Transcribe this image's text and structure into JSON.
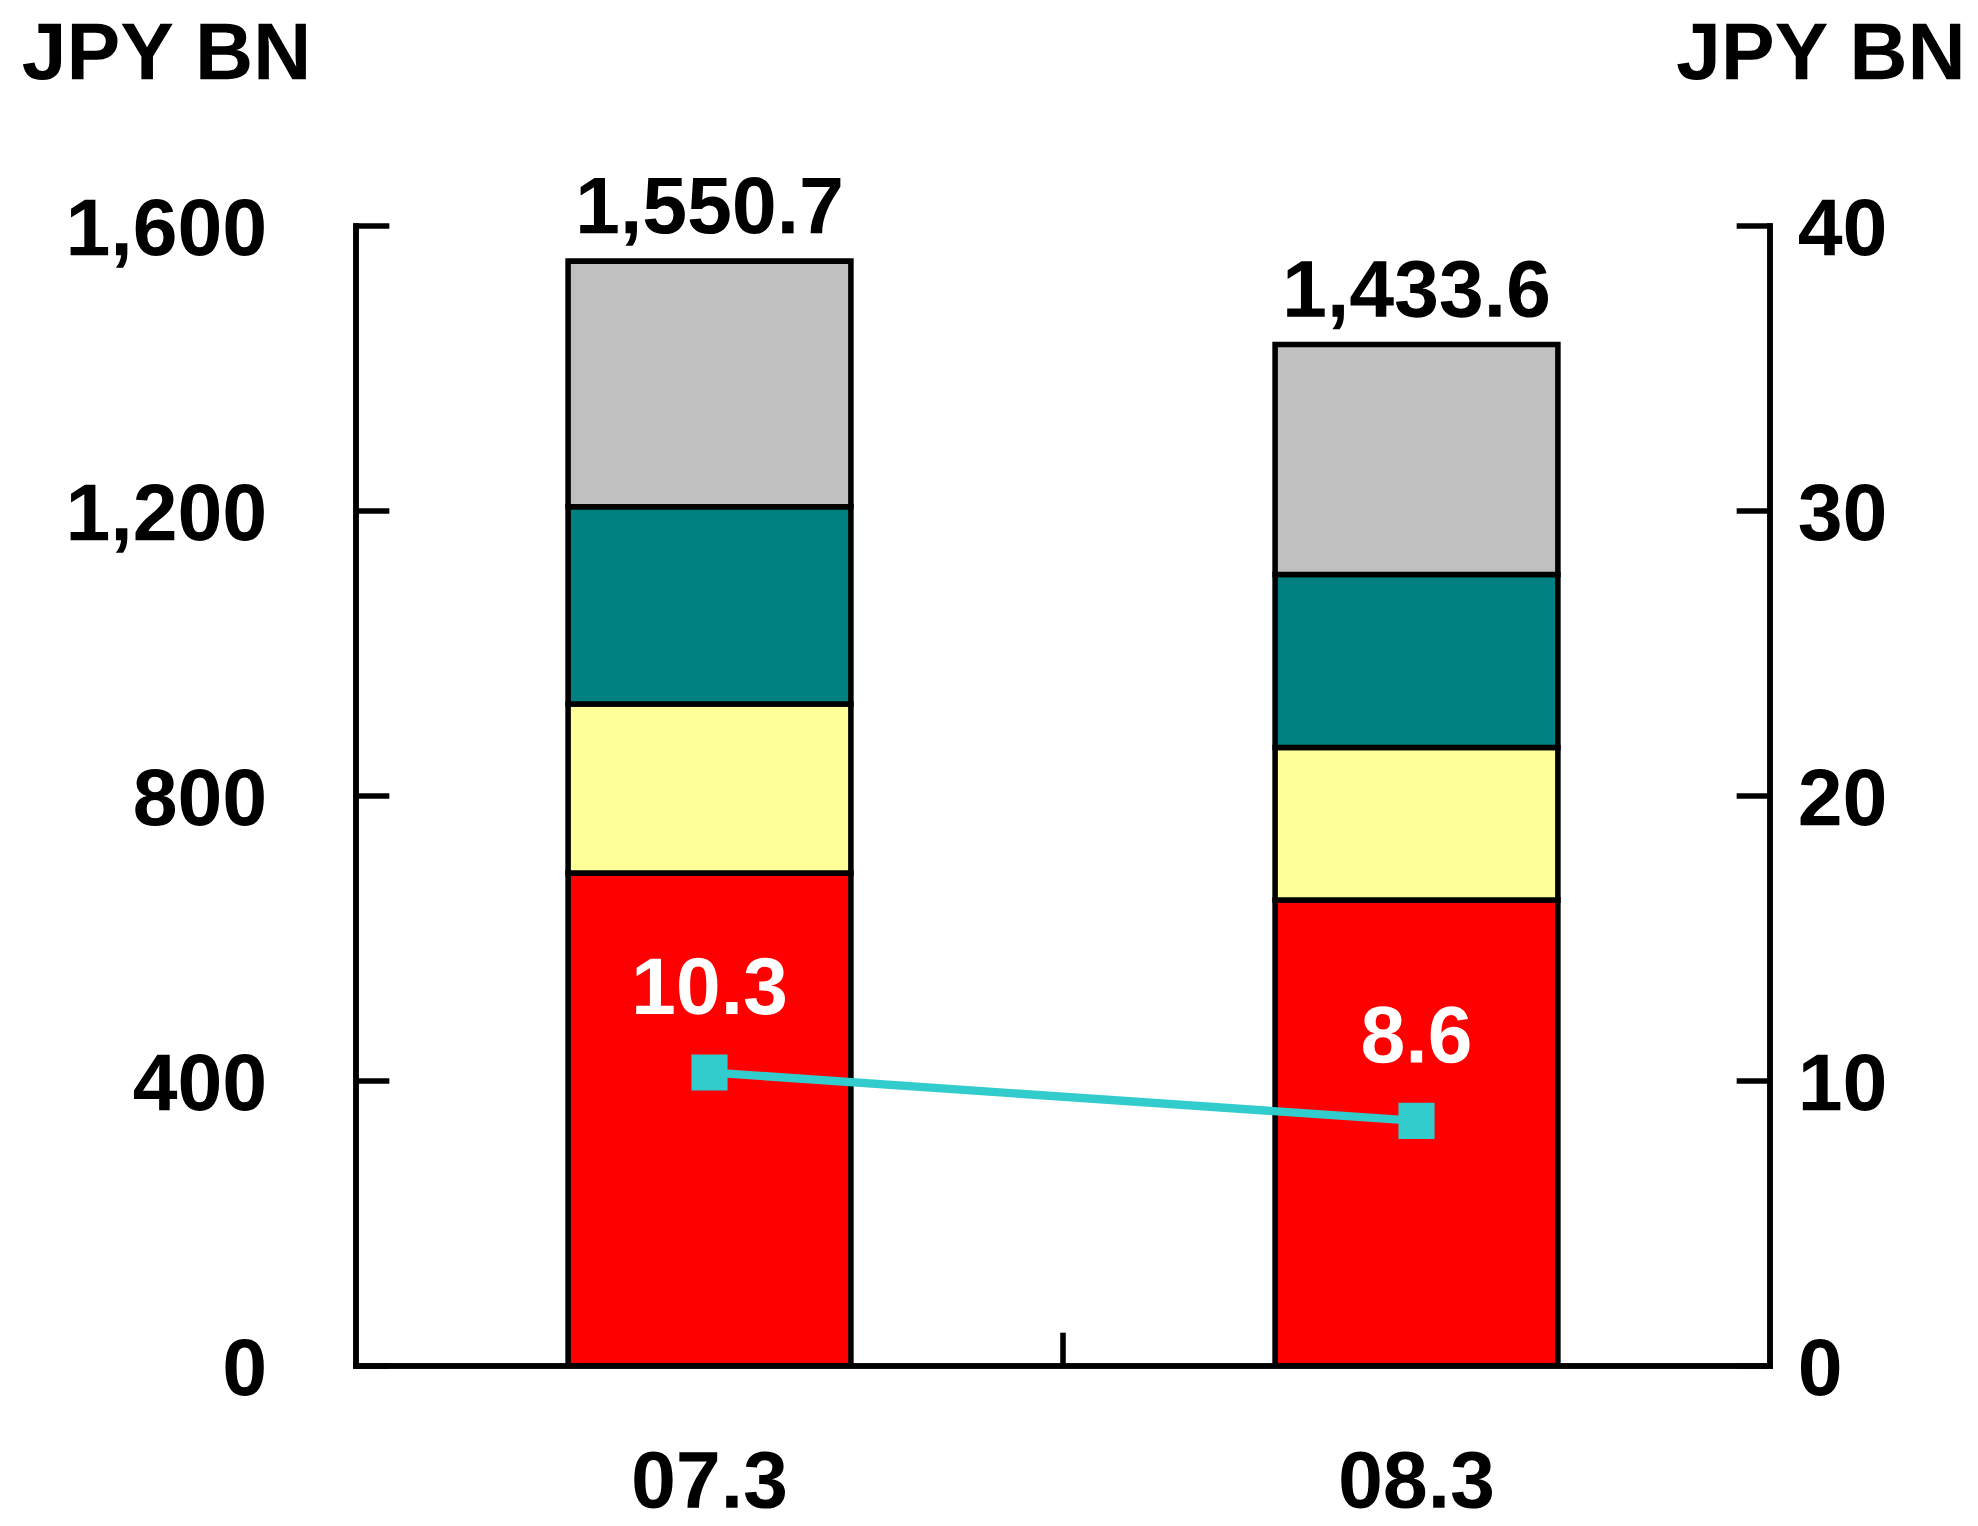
{
  "chart_data": {
    "type": "bar",
    "stacked": true,
    "categories": [
      "07.3",
      "08.3"
    ],
    "series": [
      {
        "color": "#ff0000",
        "values": [
          692,
          654
        ]
      },
      {
        "color": "#ffff99",
        "values": [
          237,
          214
        ]
      },
      {
        "color": "#008080",
        "values": [
          277,
          243
        ]
      },
      {
        "color": "#c0c0c0",
        "values": [
          344.7,
          322.6
        ]
      },
      {
        "type": "line",
        "axis": "y2",
        "color": "#33cccc",
        "values": [
          10.3,
          8.6
        ],
        "value_labels": [
          "10.3",
          "8.6"
        ]
      }
    ],
    "totals": [
      "1,550.7",
      "1,433.6"
    ],
    "ylabel": "JPY BN",
    "y2label": "JPY BN",
    "ylim": [
      0,
      1600
    ],
    "yticks": [
      0,
      400,
      800,
      {
        "value": 1200,
        "label": "1,200"
      },
      {
        "value": 1600,
        "label": "1,600"
      }
    ],
    "y2lim": [
      0,
      40
    ],
    "y2ticks": [
      0,
      10,
      20,
      30,
      40
    ],
    "marker": "square",
    "grid": false
  }
}
